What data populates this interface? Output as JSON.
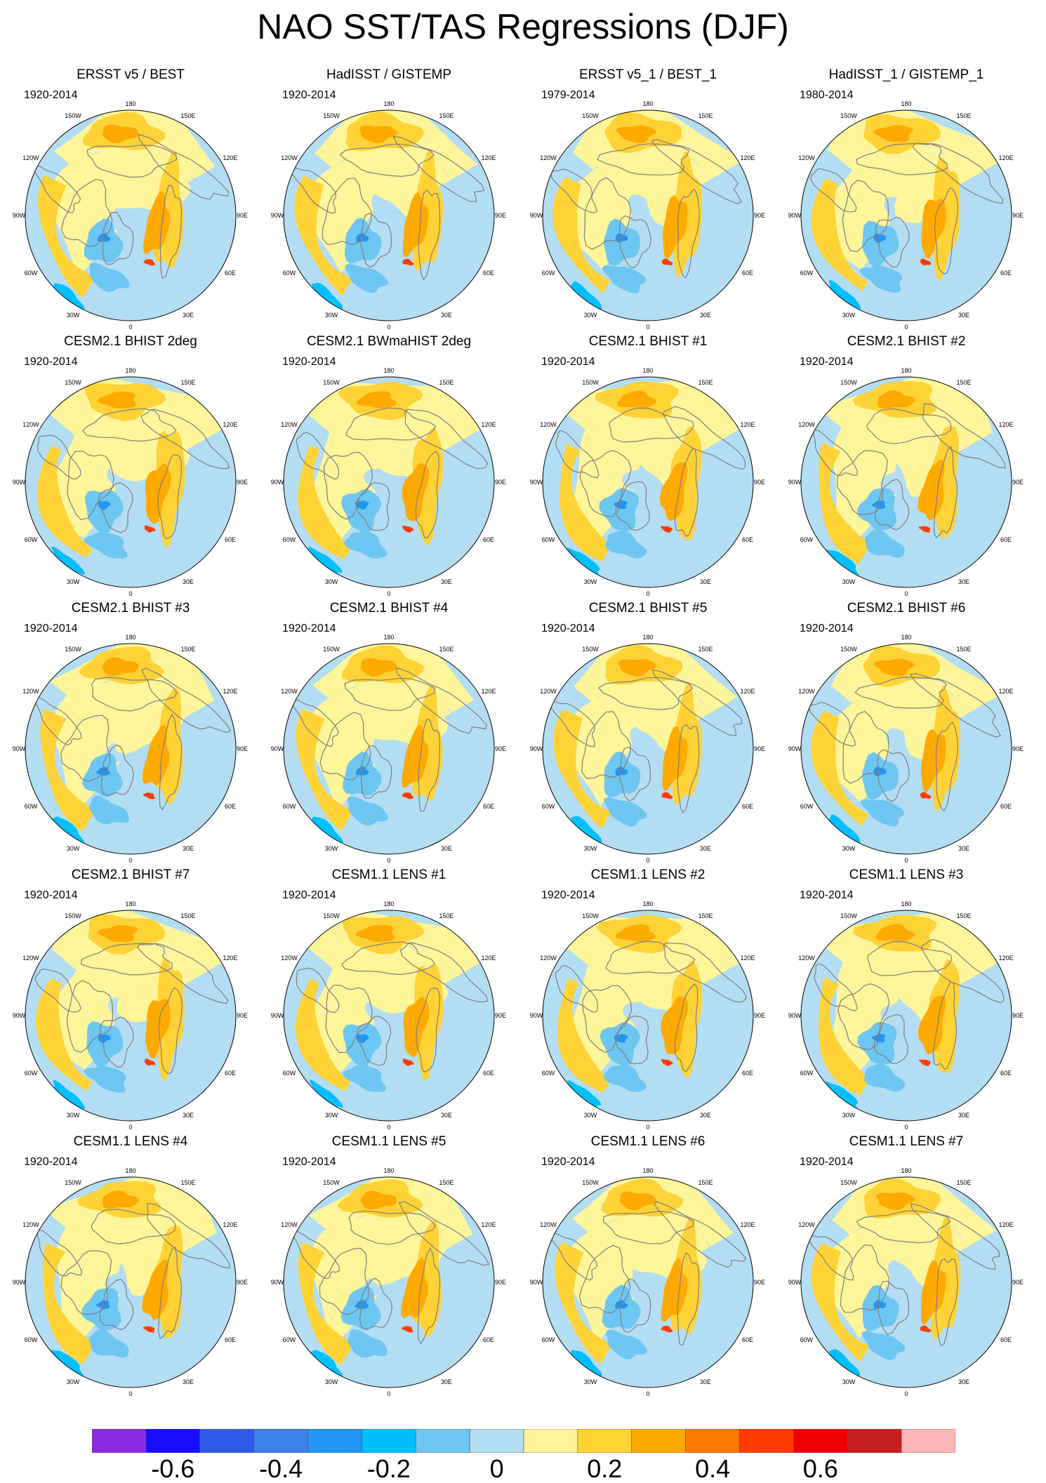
{
  "title": "NAO SST/TAS Regressions (DJF)",
  "chart_data": {
    "type": "heatmap",
    "title": "NAO SST/TAS Regressions (DJF)",
    "projection": "north polar stereographic",
    "longitude_labels": [
      "180",
      "150E",
      "120E",
      "90E",
      "60E",
      "30E",
      "0",
      "30W",
      "60W",
      "90W",
      "120W",
      "150W"
    ],
    "panels": [
      {
        "title": "ERSST v5 / BEST",
        "period": "1920-2014"
      },
      {
        "title": "HadISST / GISTEMP",
        "period": "1920-2014"
      },
      {
        "title": "ERSST v5_1 / BEST_1",
        "period": "1979-2014"
      },
      {
        "title": "HadISST_1 / GISTEMP_1",
        "period": "1980-2014"
      },
      {
        "title": "CESM2.1 BHIST 2deg",
        "period": "1920-2014"
      },
      {
        "title": "CESM2.1 BWmaHIST 2deg",
        "period": "1920-2014"
      },
      {
        "title": "CESM2.1 BHIST #1",
        "period": "1920-2014"
      },
      {
        "title": "CESM2.1 BHIST #2",
        "period": "1920-2014"
      },
      {
        "title": "CESM2.1 BHIST #3",
        "period": "1920-2014"
      },
      {
        "title": "CESM2.1 BHIST #4",
        "period": "1920-2014"
      },
      {
        "title": "CESM2.1 BHIST #5",
        "period": "1920-2014"
      },
      {
        "title": "CESM2.1 BHIST #6",
        "period": "1920-2014"
      },
      {
        "title": "CESM2.1 BHIST #7",
        "period": "1920-2014"
      },
      {
        "title": "CESM1.1 LENS #1",
        "period": "1920-2014"
      },
      {
        "title": "CESM1.1 LENS #2",
        "period": "1920-2014"
      },
      {
        "title": "CESM1.1 LENS #3",
        "period": "1920-2014"
      },
      {
        "title": "CESM1.1 LENS #4",
        "period": "1920-2014"
      },
      {
        "title": "CESM1.1 LENS #5",
        "period": "1920-2014"
      },
      {
        "title": "CESM1.1 LENS #6",
        "period": "1920-2014"
      },
      {
        "title": "CESM1.1 LENS #7",
        "period": "1920-2014"
      }
    ],
    "colorbar": {
      "colors": [
        "#8a2be2",
        "#1a0dff",
        "#2f5bea",
        "#3f7fe8",
        "#2196f3",
        "#00bfff",
        "#6ec6f2",
        "#b3ddf2",
        "#fff59a",
        "#ffd236",
        "#ffaa00",
        "#ff7800",
        "#ff3b00",
        "#ee0000",
        "#c81e1e",
        "#ffb6b6"
      ],
      "boundaries": [
        -0.7,
        -0.6,
        -0.5,
        -0.4,
        -0.3,
        -0.2,
        -0.1,
        0,
        0.1,
        0.2,
        0.3,
        0.4,
        0.5,
        0.6,
        0.7
      ],
      "tick_labels": [
        "-0.6",
        "-0.4",
        "-0.2",
        "0",
        "0.2",
        "0.4",
        "0.6"
      ],
      "tick_values": [
        -0.6,
        -0.4,
        -0.2,
        0,
        0.2,
        0.4,
        0.6
      ]
    }
  }
}
